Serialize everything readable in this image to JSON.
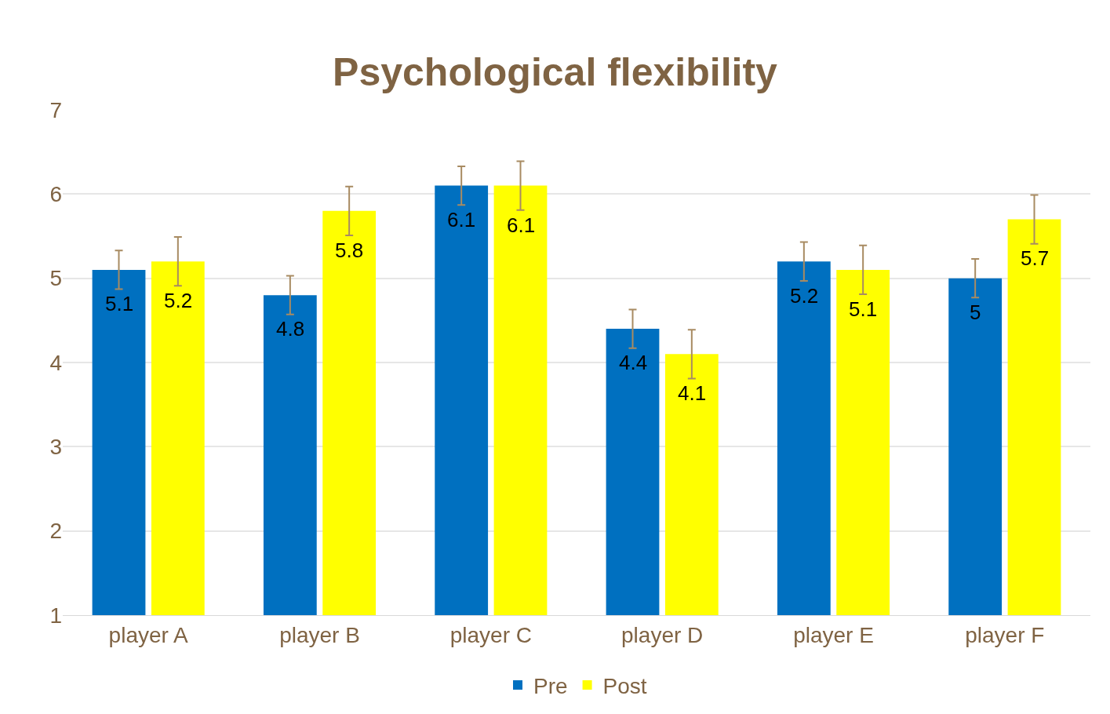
{
  "chart_data": {
    "type": "bar",
    "title": "Psychological flexibility",
    "categories": [
      "player A",
      "player B",
      "player C",
      "player D",
      "player E",
      "player F"
    ],
    "series": [
      {
        "name": "Pre",
        "color": "#0070c0",
        "values": [
          5.1,
          4.8,
          6.1,
          4.4,
          5.2,
          5.0
        ],
        "errors": [
          0.23,
          0.23,
          0.23,
          0.23,
          0.23,
          0.23
        ]
      },
      {
        "name": "Post",
        "color": "#ffff00",
        "values": [
          5.2,
          5.8,
          6.1,
          4.1,
          5.1,
          5.7
        ],
        "errors": [
          0.29,
          0.29,
          0.29,
          0.29,
          0.29,
          0.29
        ]
      }
    ],
    "ylim": [
      1,
      7
    ],
    "yticks": [
      1,
      2,
      3,
      4,
      5,
      6,
      7
    ],
    "grid": "y",
    "legend": "bottom",
    "data_labels": true
  }
}
